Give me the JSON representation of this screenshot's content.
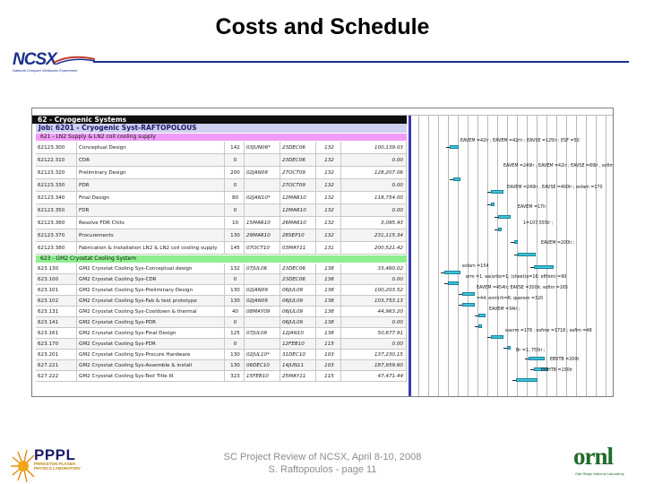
{
  "slide": {
    "title": "Costs and Schedule",
    "footer_line1": "SC Project Review of NCSX, April 8-10, 2008",
    "footer_line2": "S. Raftopoulos - page 11"
  },
  "logos": {
    "ncsx_mark": "NCSX",
    "ncsx_sub": "National Compact Stellarator Experiment",
    "pppl_mark": "PPPL",
    "pppl_sub": "PRINCETON PLASMA PHYSICS LABORATORY",
    "ornl_mark": "ornl",
    "ornl_sub": "Oak Ridge National Laboratory"
  },
  "schedule": {
    "wbs_header": "62 - Cryogenic Systems",
    "job_header": "Job: 6201 - Cryogenic Syst-RAFTOPOLOUS",
    "group1": "621 - LN2 Supply & LN2 coil cooling supply",
    "group2": "623 - GM2 Cryostat Cooling System",
    "group1_rows": [
      {
        "id": "62123.300",
        "name": "Conceptual Design",
        "dur": "142",
        "start": "03JUN06*",
        "finish": "23DEC06",
        "float": "132",
        "cost": "100,139.03"
      },
      {
        "id": "62122.310",
        "name": "CDR",
        "dur": "0",
        "start": "",
        "finish": "23DEC06",
        "float": "132",
        "cost": "0.00"
      },
      {
        "id": "62123.320",
        "name": "Preliminary Design",
        "dur": "200",
        "start": "02JAN09",
        "finish": "27OCT09",
        "float": "132",
        "cost": "128,207.06"
      },
      {
        "id": "62123.330",
        "name": "PDR",
        "dur": "0",
        "start": "",
        "finish": "27OCT09",
        "float": "132",
        "cost": "0.00"
      },
      {
        "id": "62123.340",
        "name": "Final Design",
        "dur": "80",
        "start": "02JAN10*",
        "finish": "12MAR10",
        "float": "132",
        "cost": "118,754.00"
      },
      {
        "id": "62123.350",
        "name": "FDR",
        "dur": "0",
        "start": "",
        "finish": "12MAR10",
        "float": "132",
        "cost": "0.00"
      },
      {
        "id": "62123.360",
        "name": "Resolve FDR Chits",
        "dur": "10",
        "start": "15MAR10",
        "finish": "26MAR10",
        "float": "132",
        "cost": "3,095.43"
      },
      {
        "id": "62123.370",
        "name": "Procurements",
        "dur": "130",
        "start": "29MAR10",
        "finish": "28SEP10",
        "float": "132",
        "cost": "231,115.34"
      },
      {
        "id": "62123.380",
        "name": "Fabrication & Installation LN2 & LN2 coil cooling supply",
        "dur": "145",
        "start": "07OCT10",
        "finish": "03MAY11",
        "float": "131",
        "cost": "200,521.42"
      }
    ],
    "group2_rows": [
      {
        "id": "623.130",
        "name": "GM2 Cryostat Cooling Sys-Conceptual design",
        "dur": "132",
        "start": "07JUL06",
        "finish": "23DEC06",
        "float": "138",
        "cost": "33,460.02"
      },
      {
        "id": "623.100",
        "name": "GM2 Cryostat Cooling Sys-CDR",
        "dur": "0",
        "start": "",
        "finish": "23DEC06",
        "float": "138",
        "cost": "0.00"
      },
      {
        "id": "623.101",
        "name": "GM2 Cryostat Cooling Sys-Preliminary Design",
        "dur": "130",
        "start": "02JAN09",
        "finish": "06JUL09",
        "float": "138",
        "cost": "100,203.52"
      },
      {
        "id": "623.102",
        "name": "GM2 Cryostat Cooling Sys-Fab & test prototype",
        "dur": "130",
        "start": "02JAN09",
        "finish": "06JUL09",
        "float": "138",
        "cost": "103,753.13"
      },
      {
        "id": "623.131",
        "name": "GM2 Cryostat Cooling Sys-Cooldown & thermal",
        "dur": "40",
        "start": "08MAY09",
        "finish": "06JUL09",
        "float": "138",
        "cost": "44,963.20"
      },
      {
        "id": "623.141",
        "name": "GM2 Cryostat Cooling Sys-PDR",
        "dur": "0",
        "start": "",
        "finish": "06JUL09",
        "float": "138",
        "cost": "0.00"
      },
      {
        "id": "623.161",
        "name": "GM2 Cryostat Cooling Sys-Final Design",
        "dur": "125",
        "start": "07JUL09",
        "finish": "12JAN10",
        "float": "138",
        "cost": "50,677.91"
      },
      {
        "id": "623.170",
        "name": "GM2 Cryostat Cooling Sys-FDR",
        "dur": "0",
        "start": "",
        "finish": "12FEB10",
        "float": "115",
        "cost": "0.00"
      },
      {
        "id": "623.201",
        "name": "GM2 Cryostat Cooling Sys-Procure Hardware",
        "dur": "130",
        "start": "02JUL10*",
        "finish": "31DEC10",
        "float": "103",
        "cost": "137,230.15"
      },
      {
        "id": "627.221",
        "name": "GM2 Cryostat Cooling Sys-Assemble & install",
        "dur": "130",
        "start": "06DEC10",
        "finish": "14JUN11",
        "float": "103",
        "cost": "187,959.60"
      },
      {
        "id": "627.222",
        "name": "GM2 Cryostat Cooling Sys-Test Title III",
        "dur": "323",
        "start": "15FEB10",
        "finish": "25MAY11",
        "float": "115",
        "cost": "47,471.44"
      }
    ],
    "gantt_labels": [
      "EAVEM =42lr ; EAVEM =42rlr ; EAVSE =125lr ; ESF =50",
      "EAVEM =249lr , EAVEM =42lr ; EAVSE =89lr , esfim =128",
      "EAVEM =249lr , EAVSE =400lr ; esfam =170",
      "EAVEM =17lr",
      "1=107,555lr ;",
      "EAVEM =200lr ;",
      "esfam =154",
      "erm =1; ea(erite=1; (sheet)o=16; eftfemi =90",
      "EAVEM =454lr; EAVSE =300lr; esfim =165",
      "=44; enm(rh=6; querem =320",
      "EAVEM =34lr ;",
      "eavrm =178 ; esfme =1718 ; esfim =48",
      "Br =1; 755lr ;",
      "EBVTB =200t",
      "EMHTB =150lr"
    ]
  },
  "colors": {
    "title_text": "#000000",
    "ncsx_blue": "#1b2f8c",
    "group_pink": "#f09cf7",
    "group_green": "#8fef8f",
    "job_lavender": "#cfcfef",
    "gantt_bar": "#3fc2d6",
    "footer_gray": "#8c8c8c",
    "ornl_green": "#1e6b2b"
  }
}
